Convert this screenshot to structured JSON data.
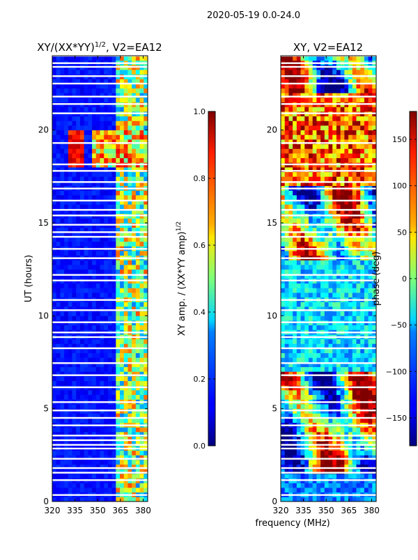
{
  "figure_title": "2020-05-19 0.0-24.0",
  "xlabel_shared": "frequency (MHz)",
  "chart_data": [
    {
      "type": "heatmap",
      "title": "XY/(XX*YY)",
      "title_exponent": "1/2",
      "title_suffix": ", V2=EA12",
      "xlabel": "frequency (MHz)",
      "ylabel": "UT (hours)",
      "xlim": [
        320,
        383
      ],
      "ylim": [
        0,
        24
      ],
      "xticks": [
        320,
        335,
        350,
        365,
        380
      ],
      "yticks": [
        0,
        5,
        10,
        15,
        20
      ],
      "colorbar": {
        "label": "XY amp. / (XX*YY amp)",
        "label_exponent": "1/2",
        "range": [
          0.0,
          1.0
        ],
        "ticks": [
          "0.0",
          "0.2",
          "0.4",
          "0.6",
          "0.8",
          "1.0"
        ],
        "colormap": "jet"
      }
    },
    {
      "type": "heatmap",
      "title": "XY, V2=EA12",
      "xlabel": "frequency (MHz)",
      "ylabel": "",
      "xlim": [
        320,
        383
      ],
      "ylim": [
        0,
        24
      ],
      "xticks": [
        320,
        335,
        350,
        365,
        380
      ],
      "yticks": [
        0,
        5,
        10,
        15,
        20
      ],
      "colorbar": {
        "label": "phase (deg)",
        "range": [
          -180,
          180
        ],
        "ticks": [
          "−150",
          "−100",
          "−50",
          "0",
          "50",
          "100",
          "150"
        ],
        "tick_values": [
          -150,
          -100,
          -50,
          0,
          50,
          100,
          150
        ],
        "colormap": "jet"
      }
    }
  ],
  "flag_times_hours": [
    0.35,
    1.15,
    1.55,
    1.8,
    2.3,
    2.85,
    3.05,
    3.3,
    3.55,
    4.1,
    4.5,
    4.9,
    5.35,
    6.15,
    6.8,
    7.45,
    8.25,
    8.85,
    9.1,
    9.65,
    10.3,
    10.85,
    11.9,
    12.2,
    13.1,
    13.6,
    14.25,
    14.5,
    14.9,
    15.4,
    15.7,
    16.2,
    16.85,
    17.2,
    17.8,
    18.15,
    19.3,
    20.9,
    21.4,
    21.8,
    22.5,
    22.9,
    23.4,
    23.6,
    24.0
  ]
}
